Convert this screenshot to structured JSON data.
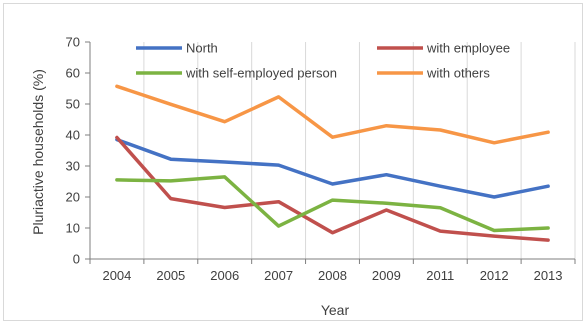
{
  "chart_data": {
    "type": "line",
    "title": "",
    "xlabel": "Year",
    "ylabel": "Pluriactive households (%)",
    "categories": [
      "2004",
      "2005",
      "2006",
      "2007",
      "2008",
      "2009",
      "2011",
      "2012",
      "2013"
    ],
    "y_ticks": [
      "0",
      "10",
      "20",
      "30",
      "40",
      "50",
      "60",
      "70"
    ],
    "ylim": [
      0,
      70
    ],
    "grid": "vertical",
    "legend_position": "top",
    "series": [
      {
        "name": "North",
        "color": "#4472c4",
        "values": [
          38.5,
          32.2,
          31.3,
          30.3,
          24.2,
          27.2,
          23.5,
          20.0,
          23.5
        ]
      },
      {
        "name": "with employee",
        "color": "#c0504d",
        "values": [
          39.2,
          19.5,
          16.6,
          18.5,
          8.5,
          15.8,
          9.0,
          7.4,
          6.1
        ]
      },
      {
        "name": "with self-employed person",
        "color": "#7cb342",
        "values": [
          25.5,
          25.2,
          26.5,
          10.6,
          19.0,
          18.0,
          16.5,
          9.2,
          10.0
        ]
      },
      {
        "name": "with others",
        "color": "#f79646",
        "values": [
          55.7,
          49.9,
          44.3,
          52.3,
          39.3,
          43.0,
          41.6,
          37.5,
          40.9
        ]
      }
    ]
  }
}
